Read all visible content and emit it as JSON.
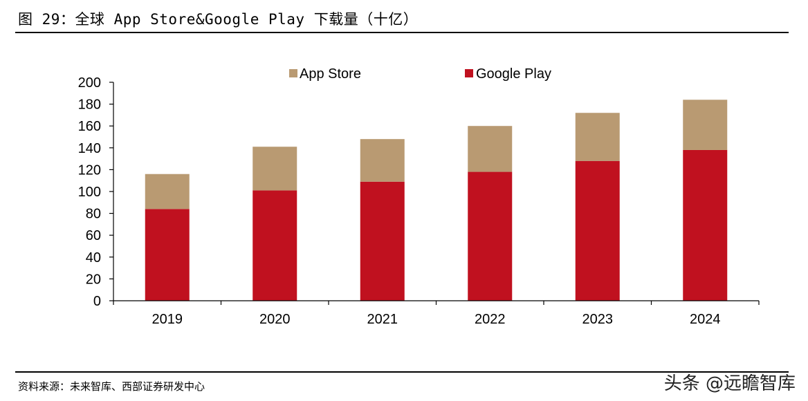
{
  "title": "图 29：全球 App Store&Google Play 下载量（十亿）",
  "source": "资料来源：未来智库、西部证券研发中心",
  "watermark": "头条 @远瞻智库",
  "colors": {
    "app_store": "#b99a72",
    "google_play": "#c0111f",
    "axis": "#000000"
  },
  "chart_data": {
    "type": "bar",
    "stacked": true,
    "categories": [
      "2019",
      "2020",
      "2021",
      "2022",
      "2023",
      "2024"
    ],
    "series": [
      {
        "name": "Google Play",
        "values": [
          84,
          101,
          109,
          118,
          128,
          138
        ]
      },
      {
        "name": "App Store",
        "values": [
          32,
          40,
          39,
          42,
          44,
          46
        ]
      }
    ],
    "legend": [
      "App Store",
      "Google Play"
    ],
    "legend_position": "top",
    "ylim": [
      0,
      200
    ],
    "yticks": [
      0,
      20,
      40,
      60,
      80,
      100,
      120,
      140,
      160,
      180,
      200
    ],
    "grid": false
  }
}
